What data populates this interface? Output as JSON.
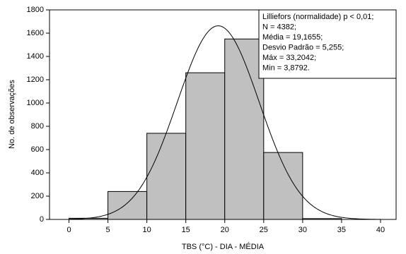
{
  "chart_data": {
    "type": "histogram",
    "xlabel": "TBS (°C) - DIA - MÉDIA",
    "ylabel": "No. de observações",
    "bins": [
      0,
      5,
      10,
      15,
      20,
      25,
      30,
      35
    ],
    "counts": [
      10,
      240,
      740,
      1260,
      1550,
      575,
      7
    ],
    "color": "#c0c0c0",
    "xlim": [
      -2.5,
      42
    ],
    "xticks": [
      0,
      5,
      10,
      15,
      20,
      25,
      30,
      35,
      40
    ],
    "ylim": [
      0,
      1800
    ],
    "yticks": [
      0,
      200,
      400,
      600,
      800,
      1000,
      1200,
      1400,
      1600,
      1800
    ],
    "normal_fit": {
      "mean": 19.1655,
      "sd": 5.255,
      "n": 4382
    },
    "annotation": [
      "Lilliefors (normalidade) p < 0,01;",
      "N = 4382;",
      "Média = 19,1655;",
      "Desvio Padrão = 5,255;",
      "Máx = 33,2042;",
      "Min = 3,8792."
    ]
  }
}
